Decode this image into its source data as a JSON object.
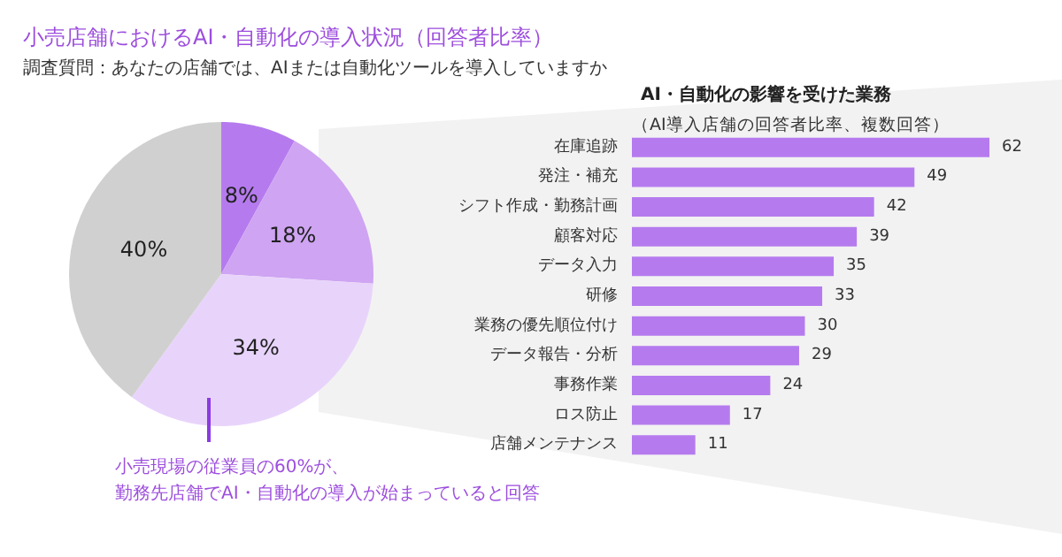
{
  "chart_data": [
    {
      "type": "pie",
      "title": "小売店舗におけるAI・自動化の導入状況（回答者比率）",
      "subtitle": "調査質問：あなたの店舗では、AIまたは自動化ツールを導入していますか",
      "categories": [
        null,
        null,
        null,
        null
      ],
      "values": [
        8,
        18,
        34,
        40
      ],
      "colors": [
        "#b57bee",
        "#cfa4f2",
        "#e8d4fb",
        "#d0d0d0"
      ],
      "value_labels": [
        "8%",
        "18%",
        "34%",
        "40%"
      ],
      "annotations": [
        "小売現場の従業員の60%が、",
        "勤務先店舗でAI・自動化の導入が始まっていると回答"
      ]
    },
    {
      "type": "bar",
      "orientation": "horizontal",
      "title": "AI・自動化の影響を受けた業務",
      "subtitle": "（AI導入店舗の回答者比率、複数回答）",
      "categories": [
        "在庫追跡",
        "発注・補充",
        "シフト作成・勤務計画",
        "顧客対応",
        "データ入力",
        "研修",
        "業務の優先順位付け",
        "データ報告・分析",
        "事務作業",
        "ロス防止",
        "店舗メンテナンス"
      ],
      "values": [
        62,
        49,
        42,
        39,
        35,
        33,
        30,
        29,
        24,
        17,
        11
      ],
      "color": "#b57bee",
      "data_labels": true
    }
  ]
}
